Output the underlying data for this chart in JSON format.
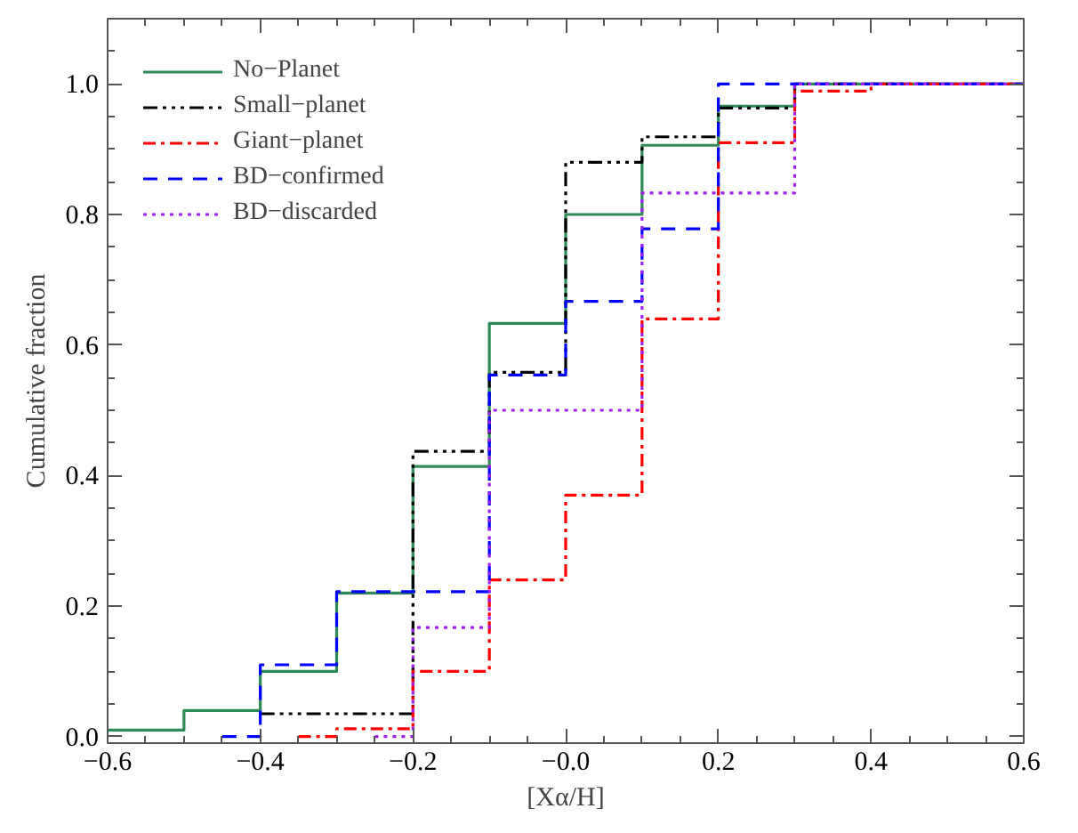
{
  "chart_data": {
    "type": "step",
    "xlabel": "[Xα/H]",
    "ylabel": "Cumulative fraction",
    "xlim": [
      -0.6,
      0.6
    ],
    "ylim": [
      -0.01,
      1.1
    ],
    "xticks": [
      {
        "value": -0.6,
        "label": "−0.6"
      },
      {
        "value": -0.4,
        "label": "−0.4"
      },
      {
        "value": -0.2,
        "label": "−0.2"
      },
      {
        "value": 0,
        "label": "−0.0"
      },
      {
        "value": 0.2,
        "label": "0.2"
      },
      {
        "value": 0.4,
        "label": "0.4"
      },
      {
        "value": 0.6,
        "label": "0.6"
      }
    ],
    "yticks": [
      {
        "value": 0,
        "label": "0.0"
      },
      {
        "value": 0.2,
        "label": "0.2"
      },
      {
        "value": 0.4,
        "label": "0.4"
      },
      {
        "value": 0.6,
        "label": "0.6"
      },
      {
        "value": 0.8,
        "label": "0.8"
      },
      {
        "value": 1.0,
        "label": "1.0"
      }
    ],
    "grid": false,
    "legend": "top left",
    "series": [
      {
        "name": "No−Planet",
        "color": "#2e8b57",
        "line_style": "solid",
        "x": [
          -0.6,
          -0.5,
          -0.4,
          -0.3,
          -0.2,
          -0.1,
          0,
          0.1,
          0.2,
          0.3,
          0.6
        ],
        "values": [
          0.01,
          0.04,
          0.1,
          0.22,
          0.414,
          0.633,
          0.8,
          0.906,
          0.966,
          1.0,
          1.0
        ]
      },
      {
        "name": "Small−planet",
        "color": "#000000",
        "line_style": "dashdotdot",
        "x": [
          -0.4,
          -0.3,
          -0.2,
          -0.1,
          0,
          0.1,
          0.2,
          0.3,
          0.6
        ],
        "values": [
          0.035,
          0.035,
          0.437,
          0.558,
          0.88,
          0.919,
          0.963,
          1.0,
          1.0
        ]
      },
      {
        "name": "Giant−planet",
        "color": "#ff0000",
        "line_style": "dashdot",
        "x": [
          -0.35,
          -0.3,
          -0.2,
          -0.1,
          0,
          0.1,
          0.2,
          0.3,
          0.4,
          0.6
        ],
        "values": [
          0.0,
          0.012,
          0.1,
          0.24,
          0.37,
          0.64,
          0.91,
          0.989,
          1.0,
          1.0
        ]
      },
      {
        "name": "BD−confirmed",
        "color": "#0000ff",
        "line_style": "dashed",
        "x": [
          -0.45,
          -0.4,
          -0.3,
          -0.2,
          -0.1,
          0,
          0.1,
          0.2,
          0.6
        ],
        "values": [
          0.0,
          0.11,
          0.222,
          0.222,
          0.554,
          0.667,
          0.778,
          1.0,
          1.0
        ]
      },
      {
        "name": "BD−discarded",
        "color": "#a020f0",
        "line_style": "dotted",
        "x": [
          -0.25,
          -0.2,
          -0.1,
          0.1,
          0.3,
          0.6
        ],
        "values": [
          0.0,
          0.167,
          0.5,
          0.833,
          1.0,
          1.0
        ]
      }
    ]
  }
}
